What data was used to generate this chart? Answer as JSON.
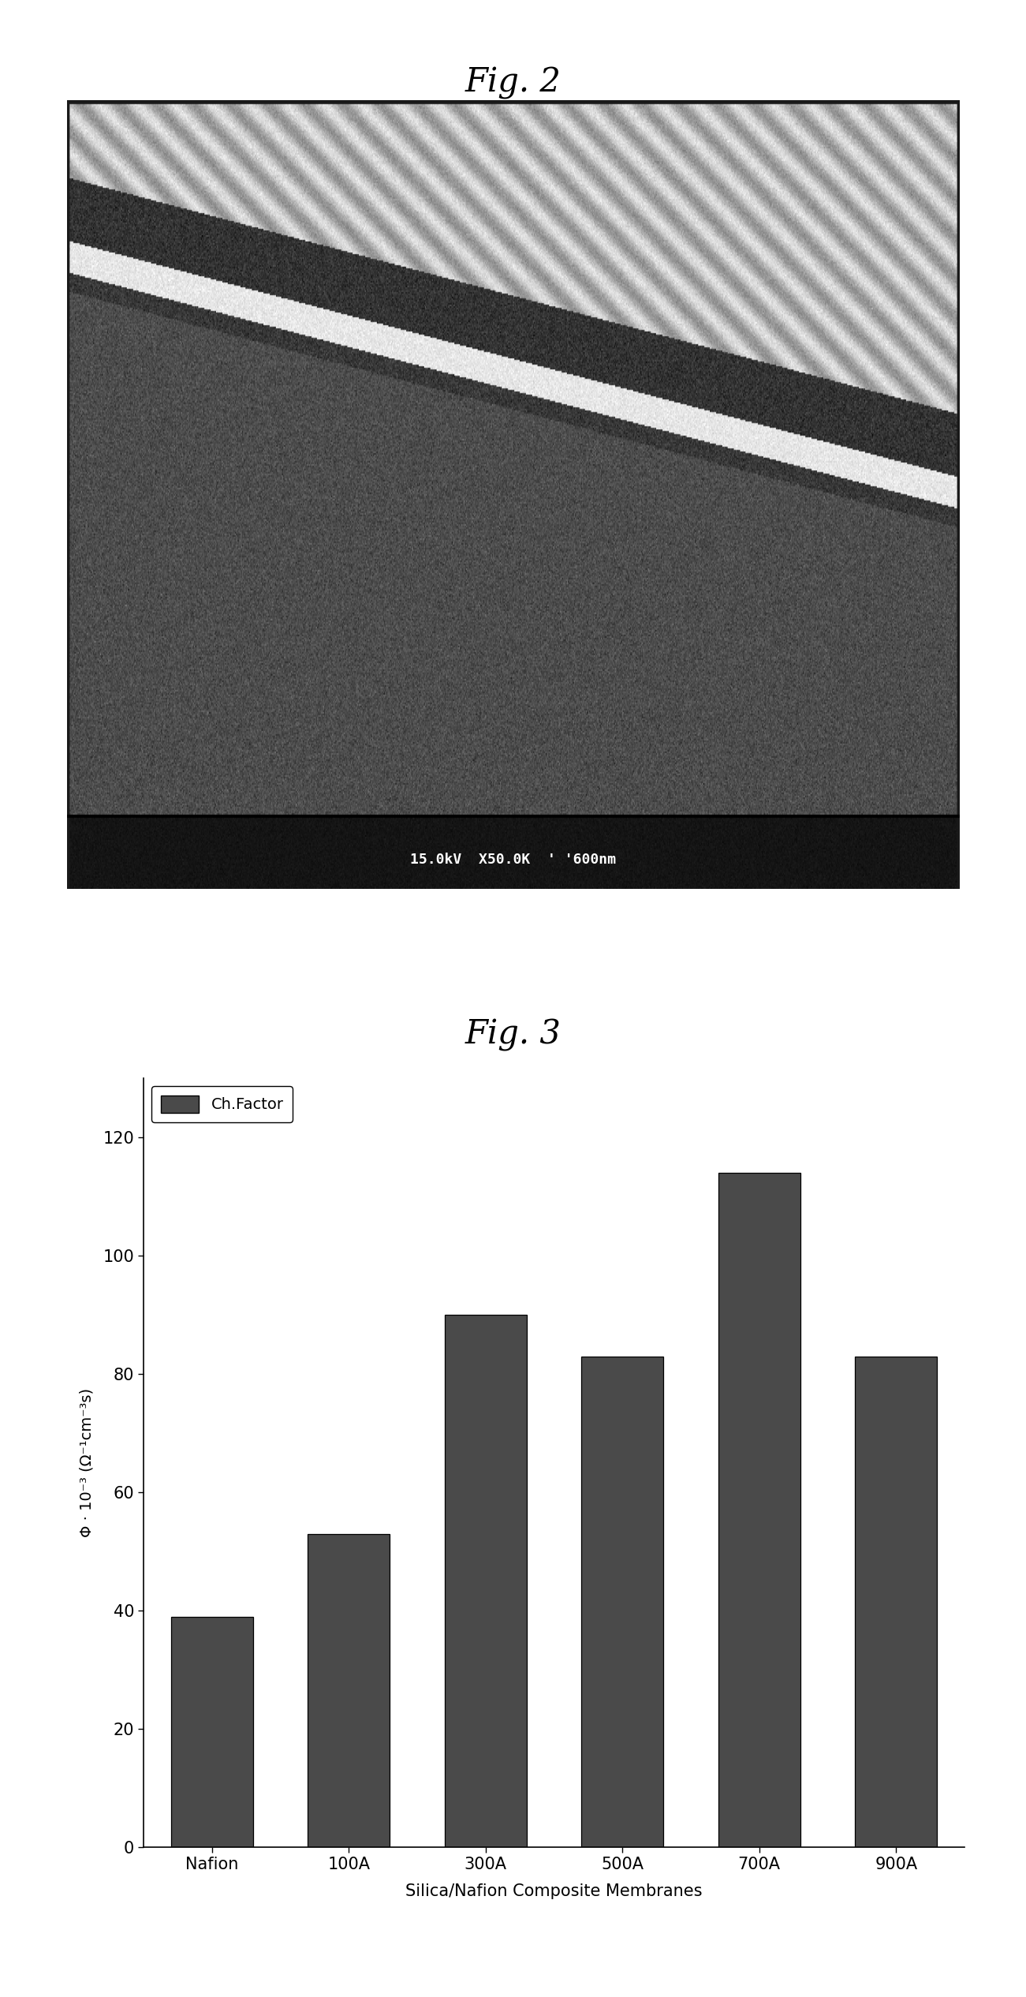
{
  "fig2_title": "Fig. 2",
  "fig3_title": "Fig. 3",
  "bar_categories": [
    "Nafion",
    "100A",
    "300A",
    "500A",
    "700A",
    "900A"
  ],
  "bar_values": [
    39,
    53,
    90,
    83,
    114,
    83
  ],
  "bar_color": "#555555",
  "ylabel": "Φ · 10⁻³ (Ω⁻¹cm⁻³s)",
  "xlabel": "Silica/Nafion Composite Membranes",
  "ylim": [
    0,
    130
  ],
  "yticks": [
    0,
    20,
    40,
    60,
    80,
    100,
    120
  ],
  "legend_label": "Ch.Factor",
  "background_color": "#ffffff",
  "sem_image_label": "15.0kV  X50.0K  ' '600nm",
  "fig2_title_fontsize": 30,
  "fig3_title_fontsize": 30
}
